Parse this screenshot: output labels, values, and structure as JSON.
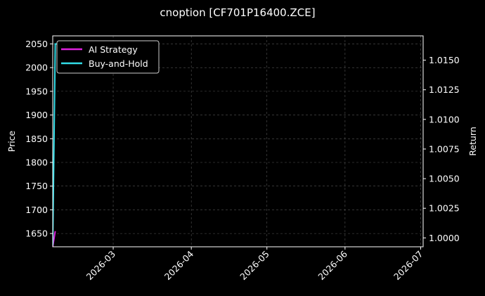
{
  "chart_data": {
    "type": "line",
    "title": "cnoption [CF701P16400.ZCE]",
    "ylabel_left": "Price",
    "ylabel_right": "Return",
    "x_ticks": [
      "2026-03",
      "2026-04",
      "2026-05",
      "2026-06",
      "2026-07"
    ],
    "x_range": [
      "2026-02-05",
      "2026-07-02"
    ],
    "y_left_ticks": [
      1650,
      1700,
      1750,
      1800,
      1850,
      1900,
      1950,
      2000,
      2050
    ],
    "y_left_range": [
      1622,
      2067
    ],
    "y_right_ticks": [
      1.0,
      1.0025,
      1.005,
      1.0075,
      1.01,
      1.0125,
      1.015
    ],
    "y_right_tick_labels": [
      "1.0000",
      "1.0025",
      "1.0050",
      "1.0075",
      "1.0100",
      "1.0125",
      "1.0150"
    ],
    "y_right_range": [
      0.99925,
      1.01705
    ],
    "grid": true,
    "legend_position": "top-left",
    "series": [
      {
        "name": "AI Strategy",
        "axis": "left",
        "color": "#dd22dd",
        "x": [
          "2026-02-05",
          "2026-02-06"
        ],
        "y": [
          1622,
          1655
        ]
      },
      {
        "name": "Buy-and-Hold",
        "axis": "left",
        "color": "#33dde8",
        "x": [
          "2026-02-05",
          "2026-02-06",
          "2026-02-07"
        ],
        "y": [
          1625,
          2050,
          2050
        ]
      }
    ]
  }
}
